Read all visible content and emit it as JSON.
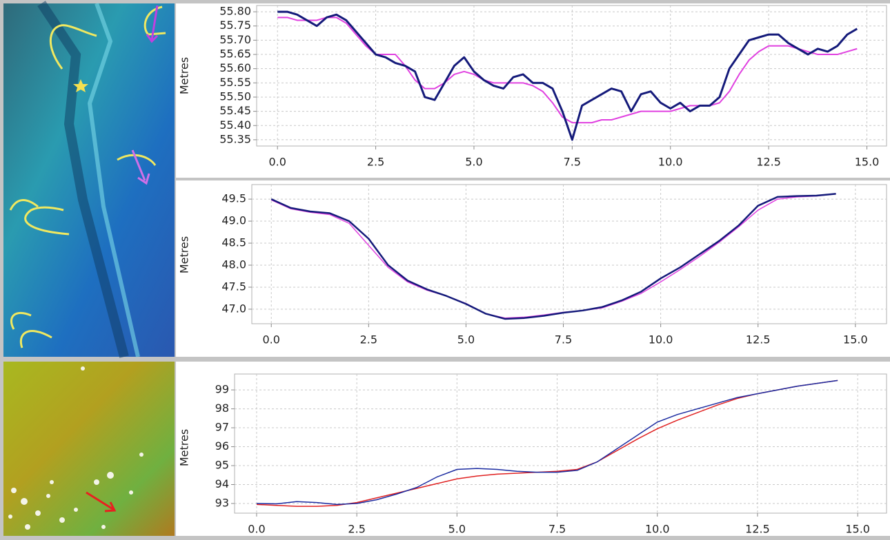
{
  "chart_data": [
    {
      "type": "line",
      "y_label": "Metres",
      "grid": true,
      "xlim": [
        -0.53,
        15.5
      ],
      "ylim": [
        55.328,
        55.822
      ],
      "xticks": [
        {
          "value": 0,
          "label": "0.0"
        },
        2.5,
        {
          "value": 5,
          "label": "5.0"
        },
        7.5,
        {
          "value": 10,
          "label": "10.0"
        },
        12.5,
        {
          "value": 15,
          "label": "15.0"
        }
      ],
      "yticks": [
        55.35,
        {
          "value": 55.4,
          "label": "55.40"
        },
        55.45,
        {
          "value": 55.5,
          "label": "55.50"
        },
        55.55,
        {
          "value": 55.6,
          "label": "55.60"
        },
        55.65,
        {
          "value": 55.7,
          "label": "55.70"
        },
        55.75,
        {
          "value": 55.8,
          "label": "55.80"
        }
      ],
      "x": [
        0,
        0.25,
        0.5,
        0.75,
        1,
        1.25,
        1.5,
        1.75,
        2,
        2.25,
        2.5,
        2.75,
        3,
        3.25,
        3.5,
        3.75,
        4,
        4.25,
        4.5,
        4.75,
        5,
        5.25,
        5.5,
        5.75,
        6,
        6.25,
        6.5,
        6.75,
        7,
        7.25,
        7.5,
        7.75,
        8,
        8.25,
        8.5,
        8.75,
        9,
        9.25,
        9.5,
        9.75,
        10,
        10.25,
        10.5,
        10.75,
        11,
        11.25,
        11.5,
        11.75,
        12,
        12.25,
        12.5,
        12.75,
        13,
        13.25,
        13.5,
        13.75,
        14,
        14.25,
        14.5,
        14.75
      ],
      "series": [
        {
          "color": "#e040e0",
          "width": 2,
          "values": [
            55.78,
            55.78,
            55.77,
            55.77,
            55.77,
            55.78,
            55.78,
            55.76,
            55.72,
            55.68,
            55.65,
            55.65,
            55.65,
            55.61,
            55.56,
            55.53,
            55.53,
            55.55,
            55.58,
            55.59,
            55.58,
            55.56,
            55.55,
            55.55,
            55.55,
            55.55,
            55.54,
            55.52,
            55.48,
            55.43,
            55.41,
            55.41,
            55.41,
            55.42,
            55.42,
            55.43,
            55.44,
            55.45,
            55.45,
            55.45,
            55.45,
            55.46,
            55.47,
            55.47,
            55.47,
            55.48,
            55.52,
            55.58,
            55.63,
            55.66,
            55.68,
            55.68,
            55.68,
            55.67,
            55.66,
            55.65,
            55.65,
            55.65,
            55.66,
            55.67
          ]
        },
        {
          "color": "#141a7a",
          "width": 3,
          "values": [
            55.8,
            55.8,
            55.79,
            55.77,
            55.75,
            55.78,
            55.79,
            55.77,
            55.73,
            55.69,
            55.65,
            55.64,
            55.62,
            55.61,
            55.59,
            55.5,
            55.49,
            55.55,
            55.61,
            55.64,
            55.59,
            55.56,
            55.54,
            55.53,
            55.57,
            55.58,
            55.55,
            55.55,
            55.53,
            55.45,
            55.35,
            55.47,
            55.49,
            55.51,
            55.53,
            55.52,
            55.45,
            55.51,
            55.52,
            55.48,
            55.46,
            55.48,
            55.45,
            55.47,
            55.47,
            55.5,
            55.6,
            55.65,
            55.7,
            55.71,
            55.72,
            55.72,
            55.69,
            55.67,
            55.65,
            55.67,
            55.66,
            55.68,
            55.72,
            55.74
          ]
        }
      ]
    },
    {
      "type": "line",
      "y_label": "Metres",
      "grid": true,
      "xlim": [
        -0.5,
        15.8
      ],
      "ylim": [
        46.67,
        49.83
      ],
      "xticks": [
        {
          "value": 0,
          "label": "0.0"
        },
        2.5,
        {
          "value": 5,
          "label": "5.0"
        },
        7.5,
        {
          "value": 10,
          "label": "10.0"
        },
        12.5,
        {
          "value": 15,
          "label": "15.0"
        }
      ],
      "yticks": [
        {
          "value": 47,
          "label": "47.0"
        },
        47.5,
        {
          "value": 48,
          "label": "48.0"
        },
        48.5,
        {
          "value": 49,
          "label": "49.0"
        },
        49.5
      ],
      "x": [
        0,
        0.5,
        1,
        1.5,
        2,
        2.5,
        3,
        3.5,
        4,
        4.5,
        5,
        5.5,
        6,
        6.5,
        7,
        7.5,
        8,
        8.5,
        9,
        9.5,
        10,
        10.5,
        11,
        11.5,
        12,
        12.5,
        13,
        13.5,
        14,
        14.5
      ],
      "series": [
        {
          "color": "#e040e0",
          "width": 1.5,
          "values": [
            49.48,
            49.28,
            49.2,
            49.15,
            48.95,
            48.45,
            47.95,
            47.62,
            47.43,
            47.3,
            47.13,
            46.9,
            46.8,
            46.82,
            46.87,
            46.93,
            46.97,
            47.03,
            47.18,
            47.36,
            47.62,
            47.9,
            48.2,
            48.52,
            48.87,
            49.25,
            49.5,
            49.55,
            49.57,
            49.62
          ]
        },
        {
          "color": "#141a7a",
          "width": 2.5,
          "values": [
            49.5,
            49.3,
            49.22,
            49.18,
            49.0,
            48.6,
            48.0,
            47.65,
            47.45,
            47.3,
            47.12,
            46.9,
            46.78,
            46.8,
            46.85,
            46.92,
            46.97,
            47.05,
            47.2,
            47.4,
            47.7,
            47.95,
            48.25,
            48.55,
            48.9,
            49.35,
            49.55,
            49.57,
            49.58,
            49.62
          ]
        }
      ]
    },
    {
      "type": "line",
      "y_label": "Metres",
      "grid": true,
      "xlim": [
        -0.55,
        15.72
      ],
      "ylim": [
        92.49,
        99.84
      ],
      "xticks": [
        {
          "value": 0,
          "label": "0.0"
        },
        2.5,
        {
          "value": 5,
          "label": "5.0"
        },
        7.5,
        {
          "value": 10,
          "label": "10.0"
        },
        12.5,
        {
          "value": 15,
          "label": "15.0"
        }
      ],
      "yticks": [
        93,
        94,
        95,
        96,
        97,
        98,
        99
      ],
      "x": [
        0,
        0.5,
        1,
        1.5,
        2,
        2.5,
        3,
        3.5,
        4,
        4.5,
        5,
        5.5,
        6,
        6.5,
        7,
        7.5,
        8,
        8.5,
        9,
        9.5,
        10,
        10.5,
        11,
        11.5,
        12,
        12.5,
        13,
        13.5,
        14,
        14.5
      ],
      "series": [
        {
          "color": "#e02020",
          "width": 1.5,
          "values": [
            92.95,
            92.9,
            92.85,
            92.85,
            92.9,
            93.05,
            93.3,
            93.55,
            93.8,
            94.05,
            94.3,
            94.45,
            94.55,
            94.6,
            94.65,
            94.7,
            94.8,
            95.2,
            95.8,
            96.4,
            96.95,
            97.4,
            97.8,
            98.2,
            98.55,
            98.8,
            99.0,
            99.2,
            99.35,
            99.5
          ]
        },
        {
          "color": "#1a2aa0",
          "width": 1.5,
          "values": [
            93.0,
            92.98,
            93.1,
            93.05,
            92.95,
            93.0,
            93.2,
            93.5,
            93.85,
            94.4,
            94.8,
            94.85,
            94.8,
            94.7,
            94.65,
            94.65,
            94.75,
            95.2,
            95.9,
            96.6,
            97.3,
            97.7,
            98.0,
            98.3,
            98.6,
            98.8,
            99.0,
            99.2,
            99.35,
            99.5
          ]
        }
      ]
    }
  ]
}
